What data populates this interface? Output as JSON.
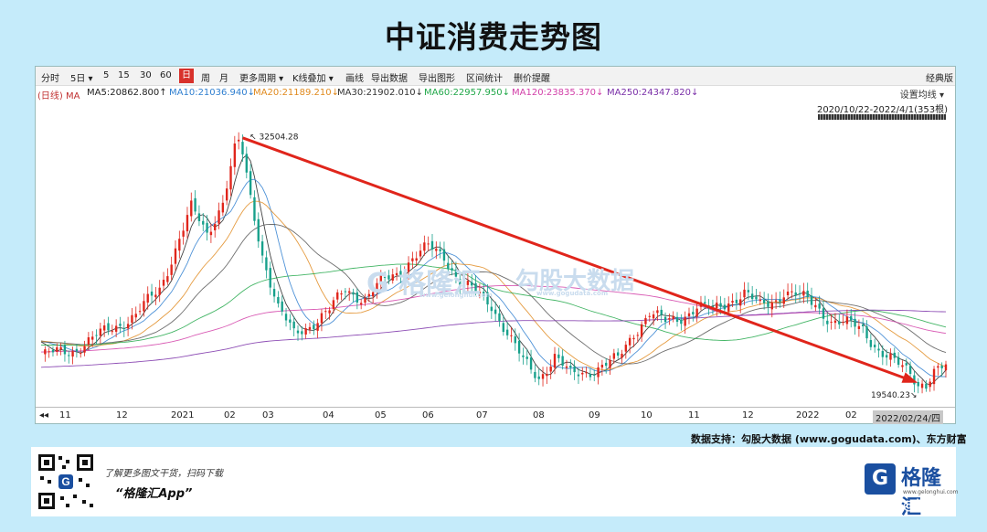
{
  "title": "中证消费走势图",
  "toolbar": {
    "items": [
      "分时",
      "5日 ▾",
      "5",
      "15",
      "30",
      "60",
      "日",
      "周",
      "月",
      "更多周期 ▾",
      "K线叠加 ▾",
      "画线",
      "导出数据",
      "导出图形",
      "区间统计",
      "删价提醒"
    ],
    "active": "日",
    "right": "经典版"
  },
  "ma_legend": {
    "prefix": "(日线) MA",
    "items": [
      {
        "label": "MA5:20862.800↑",
        "color": "#222222"
      },
      {
        "label": "MA10:21036.940↓",
        "color": "#2f7fd0"
      },
      {
        "label": "MA20:21189.210↓",
        "color": "#e08a1e"
      },
      {
        "label": "MA30:21902.010↓",
        "color": "#333333"
      },
      {
        "label": "MA60:22957.950↓",
        "color": "#22a84a"
      },
      {
        "label": "MA120:23835.370↓",
        "color": "#d23fa8"
      },
      {
        "label": "MA250:24347.820↓",
        "color": "#7a2fa8"
      }
    ]
  },
  "settings_label": "设置均线 ▾",
  "range_label": "2020/10/22-2022/4/1(353根)",
  "watermark": {
    "name": "格隆汇",
    "sub": "www.gelonghui.com",
    "name2": "勾股大数据",
    "sub2": "www.gogudata.com"
  },
  "chart_data": {
    "type": "candlestick",
    "title": "中证消费走势图",
    "x_ticks": [
      "11",
      "12",
      "2021",
      "02",
      "03",
      "04",
      "05",
      "06",
      "07",
      "08",
      "09",
      "10",
      "11",
      "12",
      "2022",
      "02",
      "2022/02/24/四"
    ],
    "annotations": [
      {
        "text": "32504.28",
        "type": "max"
      },
      {
        "text": "19540.23",
        "type": "min"
      }
    ],
    "close_path": [
      [
        0,
        21200
      ],
      [
        8,
        21500
      ],
      [
        16,
        22400
      ],
      [
        24,
        23300
      ],
      [
        30,
        24600
      ],
      [
        35,
        27200
      ],
      [
        38,
        28700
      ],
      [
        42,
        27400
      ],
      [
        46,
        29100
      ],
      [
        50,
        32504.28
      ],
      [
        53,
        29200
      ],
      [
        56,
        26400
      ],
      [
        60,
        23600
      ],
      [
        64,
        22300
      ],
      [
        68,
        22800
      ],
      [
        73,
        23500
      ],
      [
        77,
        24600
      ],
      [
        82,
        24100
      ],
      [
        86,
        24900
      ],
      [
        90,
        25400
      ],
      [
        94,
        26200
      ],
      [
        98,
        26700
      ],
      [
        102,
        26300
      ],
      [
        106,
        25000
      ],
      [
        110,
        24400
      ],
      [
        114,
        23800
      ],
      [
        118,
        22400
      ],
      [
        122,
        20900
      ],
      [
        126,
        20100
      ],
      [
        130,
        21200
      ],
      [
        134,
        20200
      ],
      [
        138,
        20400
      ],
      [
        142,
        20700
      ],
      [
        146,
        21000
      ],
      [
        150,
        22400
      ],
      [
        154,
        23400
      ],
      [
        158,
        22900
      ],
      [
        162,
        23200
      ],
      [
        166,
        23700
      ],
      [
        170,
        23500
      ],
      [
        174,
        24000
      ],
      [
        178,
        24400
      ],
      [
        182,
        23700
      ],
      [
        186,
        24100
      ],
      [
        188,
        24500
      ],
      [
        192,
        24200
      ],
      [
        196,
        23800
      ],
      [
        200,
        23000
      ],
      [
        204,
        22800
      ],
      [
        208,
        22600
      ],
      [
        212,
        21500
      ],
      [
        216,
        20800
      ],
      [
        220,
        20400
      ],
      [
        223,
        19540.23
      ],
      [
        226,
        20300
      ],
      [
        229,
        20600
      ]
    ],
    "moving_averages": [
      {
        "name": "MA5",
        "value": 20862.8,
        "color": "#222222"
      },
      {
        "name": "MA10",
        "value": 21036.94,
        "color": "#2f7fd0"
      },
      {
        "name": "MA20",
        "value": 21189.21,
        "color": "#e08a1e"
      },
      {
        "name": "MA30",
        "value": 21902.01,
        "color": "#333333"
      },
      {
        "name": "MA60",
        "value": 22957.95,
        "color": "#22a84a"
      },
      {
        "name": "MA120",
        "value": 23835.37,
        "color": "#d23fa8"
      },
      {
        "name": "MA250",
        "value": 24347.82,
        "color": "#7a2fa8"
      }
    ],
    "trendline": {
      "from_value": 32504.28,
      "to_value": 19540.23,
      "color": "#e0251b"
    },
    "colors": {
      "up": "#e0251b",
      "down": "#17a08b"
    }
  },
  "source": "数据支持：勾股大数据 (www.gogudata.com)、东方财富",
  "promo": {
    "line1": "了解更多图文干货，扫码下载",
    "line2": "“格隆汇App”"
  },
  "logo": {
    "text": "格隆汇",
    "sub": "www.gelonghui.com",
    "mark": "G"
  },
  "corner": "@格隆汇"
}
